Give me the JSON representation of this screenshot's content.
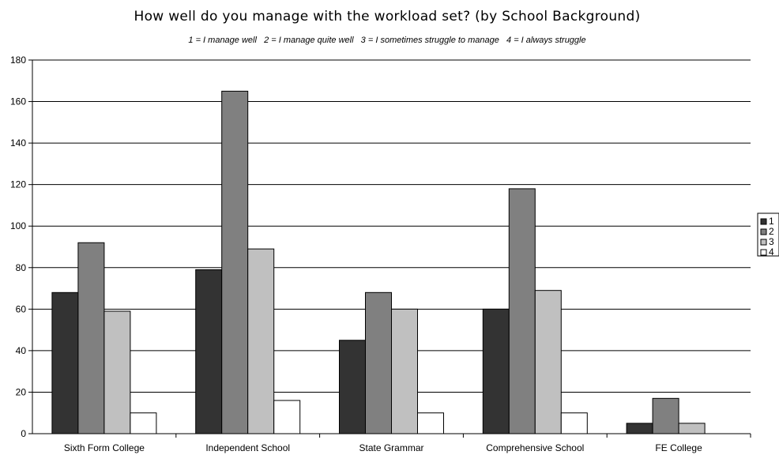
{
  "chart_data": {
    "type": "bar",
    "title": "How well do you manage with the workload set? (by School Background)",
    "subtitle": "1 = I manage well   2 = I manage quite well   3 = I sometimes struggle to manage   4 = I always struggle",
    "categories": [
      "Sixth Form College",
      "Independent School",
      "State Grammar",
      "Comprehensive School",
      "FE College"
    ],
    "series": [
      {
        "name": "1",
        "values": [
          68,
          79,
          45,
          60,
          5
        ],
        "color": "#333333"
      },
      {
        "name": "2",
        "values": [
          92,
          165,
          68,
          118,
          17
        ],
        "color": "#808080"
      },
      {
        "name": "3",
        "values": [
          59,
          89,
          60,
          69,
          5
        ],
        "color": "#c0c0c0"
      },
      {
        "name": "4",
        "values": [
          10,
          16,
          10,
          10,
          0
        ],
        "color": "#ffffff"
      }
    ],
    "ylim": [
      0,
      180
    ],
    "yticks": [
      0,
      20,
      40,
      60,
      80,
      100,
      120,
      140,
      160,
      180
    ],
    "grid": true,
    "legend": "right"
  }
}
